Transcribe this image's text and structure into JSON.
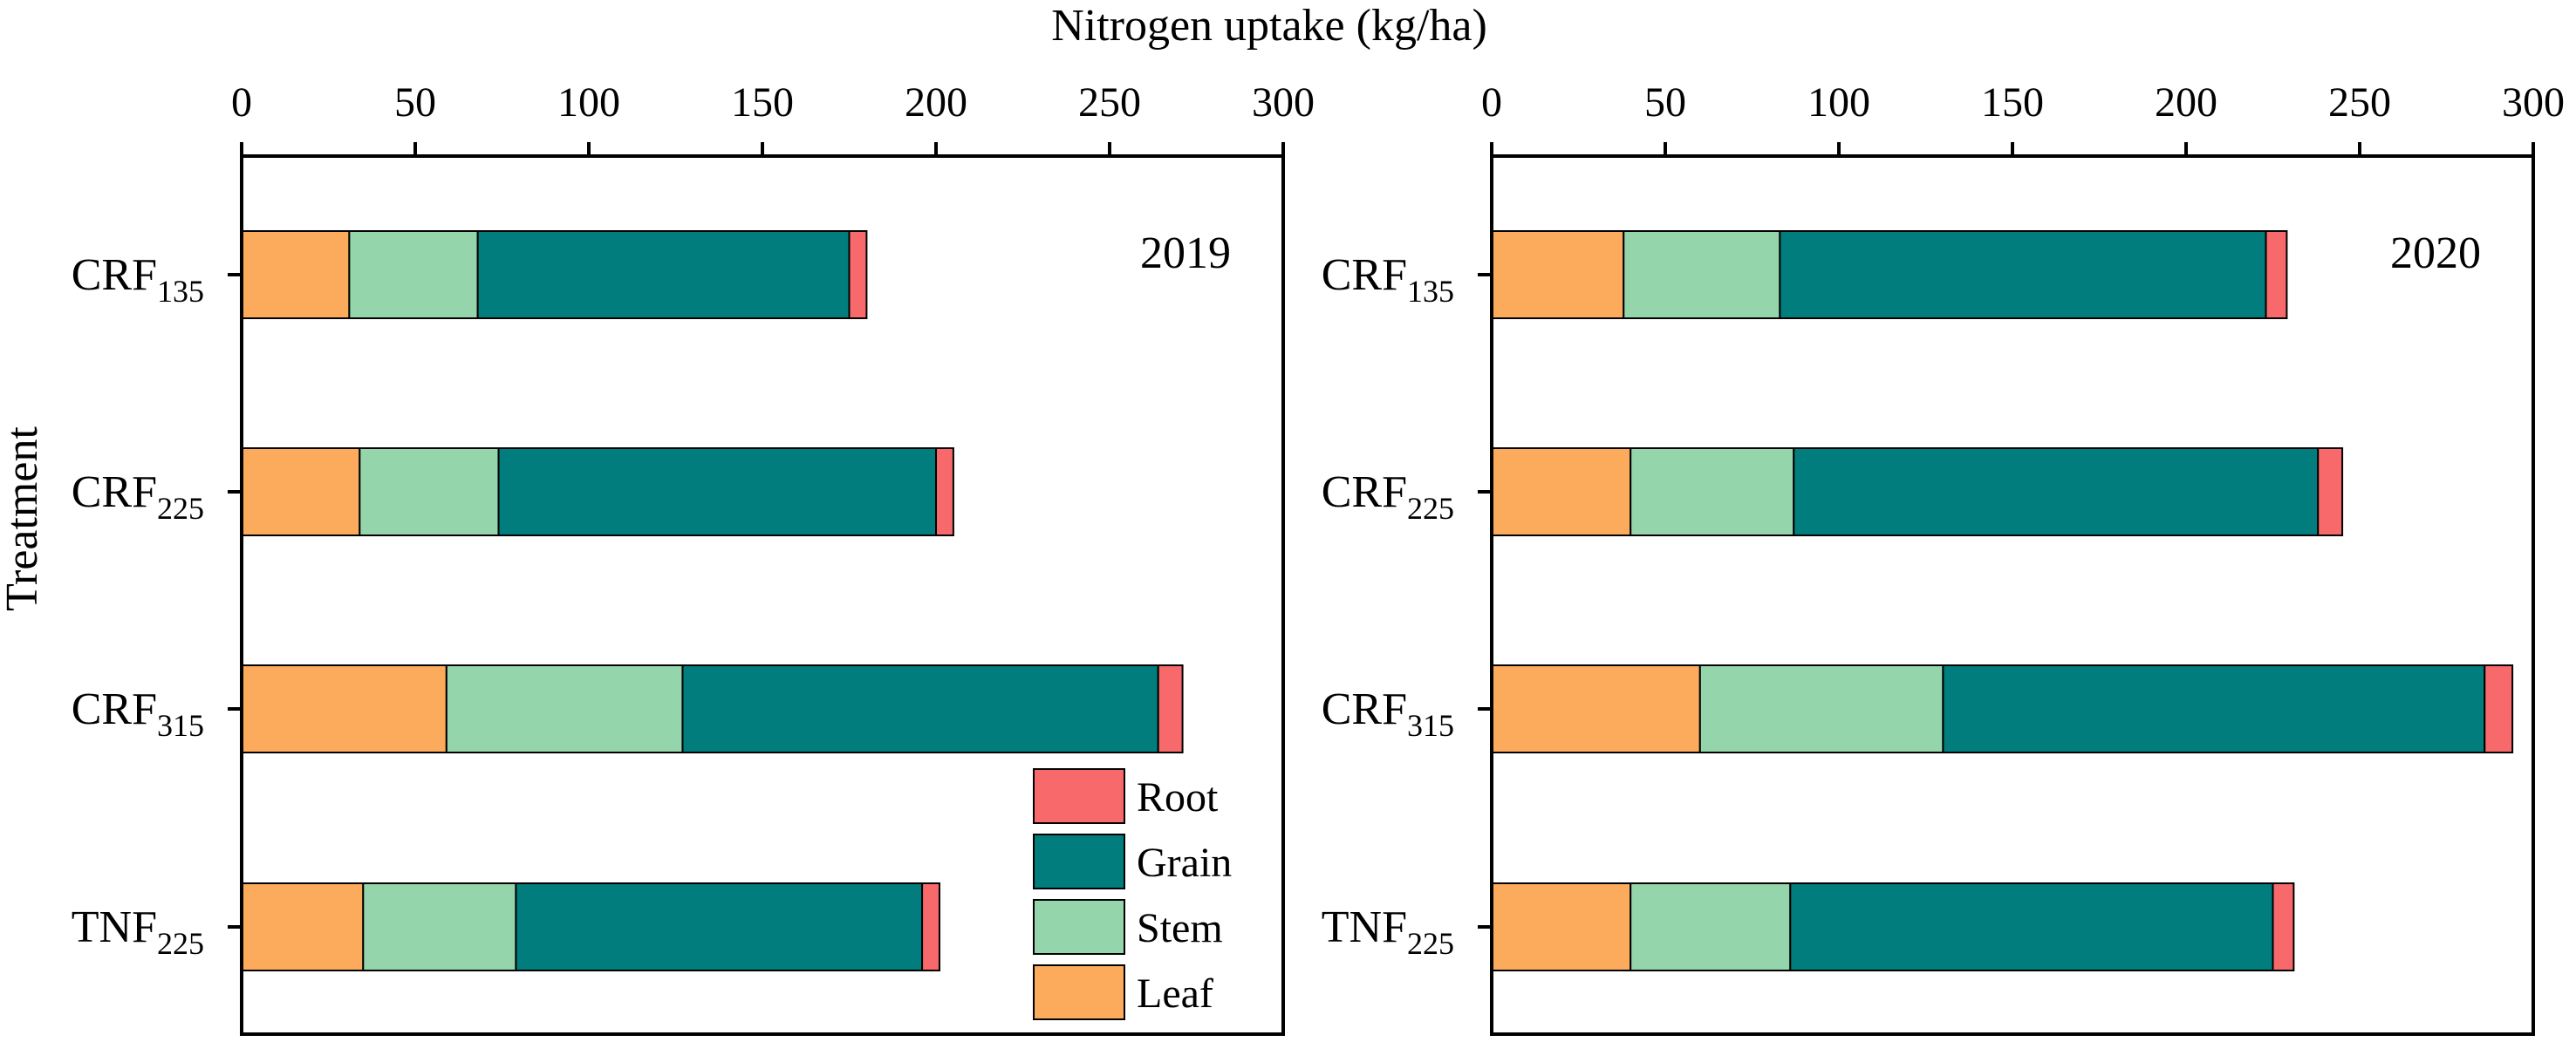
{
  "chart_data": {
    "type": "bar",
    "orientation": "horizontal",
    "stacked": true,
    "shared_xlabel": "Nitrogen uptake (kg/ha)",
    "shared_ylabel": "Treatment",
    "legend": {
      "position": "bottom-right of first panel",
      "entries": [
        "Root",
        "Grain",
        "Stem",
        "Leaf"
      ]
    },
    "colors": {
      "Leaf": "#FCAA5B",
      "Stem": "#95D5AB",
      "Grain": "#007D7C",
      "Root": "#F7696A"
    },
    "categories": [
      {
        "main": "CRF",
        "sub": "135"
      },
      {
        "main": "CRF",
        "sub": "225"
      },
      {
        "main": "CRF",
        "sub": "315"
      },
      {
        "main": "TNF",
        "sub": "225"
      }
    ],
    "xlim": [
      0,
      300
    ],
    "xticks": [
      0,
      50,
      100,
      150,
      200,
      250,
      300
    ],
    "panels": [
      {
        "label": "2019",
        "series": [
          {
            "name": "Leaf",
            "values": [
              31,
              34,
              59,
              35
            ]
          },
          {
            "name": "Stem",
            "values": [
              37,
              40,
              68,
              44
            ]
          },
          {
            "name": "Grain",
            "values": [
              107,
              126,
              137,
              117
            ]
          },
          {
            "name": "Root",
            "values": [
              5,
              5,
              7,
              5
            ]
          }
        ]
      },
      {
        "label": "2020",
        "series": [
          {
            "name": "Leaf",
            "values": [
              38,
              40,
              60,
              40
            ]
          },
          {
            "name": "Stem",
            "values": [
              45,
              47,
              70,
              46
            ]
          },
          {
            "name": "Grain",
            "values": [
              140,
              151,
              156,
              139
            ]
          },
          {
            "name": "Root",
            "values": [
              6,
              7,
              8,
              6
            ]
          }
        ]
      }
    ]
  }
}
